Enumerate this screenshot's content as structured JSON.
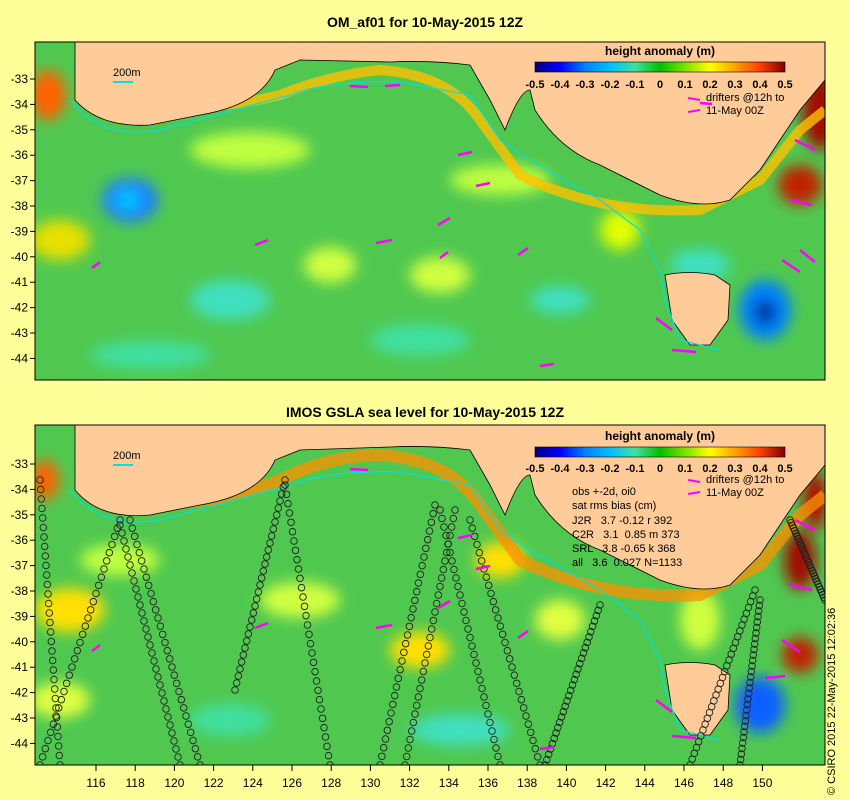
{
  "chart_data": [
    {
      "type": "heatmap",
      "title": "OM_af01 for 10-May-2015 12Z",
      "colorbar": {
        "label": "height anomaly (m)",
        "ticks": [
          "-0.5",
          "-0.4",
          "-0.3",
          "-0.2",
          "-0.1",
          "0",
          "0.1",
          "0.2",
          "0.3",
          "0.4",
          "0.5"
        ],
        "colors": [
          "#000080",
          "#0000ff",
          "#0080ff",
          "#00c0ff",
          "#40e0a0",
          "#00c000",
          "#80e000",
          "#ffff00",
          "#ffa000",
          "#ff4000",
          "#c00000",
          "#800000"
        ]
      },
      "yticks": [
        "-33",
        "-34",
        "-35",
        "-36",
        "-37",
        "-38",
        "-39",
        "-40",
        "-41",
        "-42",
        "-43",
        "-44"
      ],
      "isobath_label": "200m",
      "drifters_note": [
        "drifters @12h to",
        "11-May 00Z"
      ]
    },
    {
      "type": "heatmap",
      "title": "IMOS GSLA sea level  for 10-May-2015 12Z",
      "colorbar": {
        "label": "height anomaly (m)",
        "ticks": [
          "-0.5",
          "-0.4",
          "-0.3",
          "-0.2",
          "-0.1",
          "0",
          "0.1",
          "0.2",
          "0.3",
          "0.4",
          "0.5"
        ]
      },
      "yticks": [
        "-33",
        "-34",
        "-35",
        "-36",
        "-37",
        "-38",
        "-39",
        "-40",
        "-41",
        "-42",
        "-43",
        "-44"
      ],
      "xticks": [
        "116",
        "118",
        "120",
        "122",
        "124",
        "126",
        "128",
        "130",
        "132",
        "134",
        "136",
        "138",
        "140",
        "142",
        "144",
        "146",
        "148",
        "150"
      ],
      "isobath_label": "200m",
      "drifters_note": [
        "drifters @12h to",
        "11-May 00Z"
      ],
      "stats": {
        "header": [
          "obs +-2d, oi0",
          "sat rms bias (cm)"
        ],
        "rows": [
          "J2R   3.7 -0.12 r 392",
          "C2R   3.1  0.85 m 373",
          "SRL   3.8 -0.65 k 368",
          "all   3.6  0.027 N=1133"
        ]
      }
    }
  ],
  "credit": "© CSIRO 2015  22-May-2015 12:02:36",
  "colors": {
    "background": "#ffff99",
    "land": "#ffcc99",
    "ocean_base": "#40c040",
    "drifter": "#ff00ff",
    "isobath": "#00e0e0"
  }
}
